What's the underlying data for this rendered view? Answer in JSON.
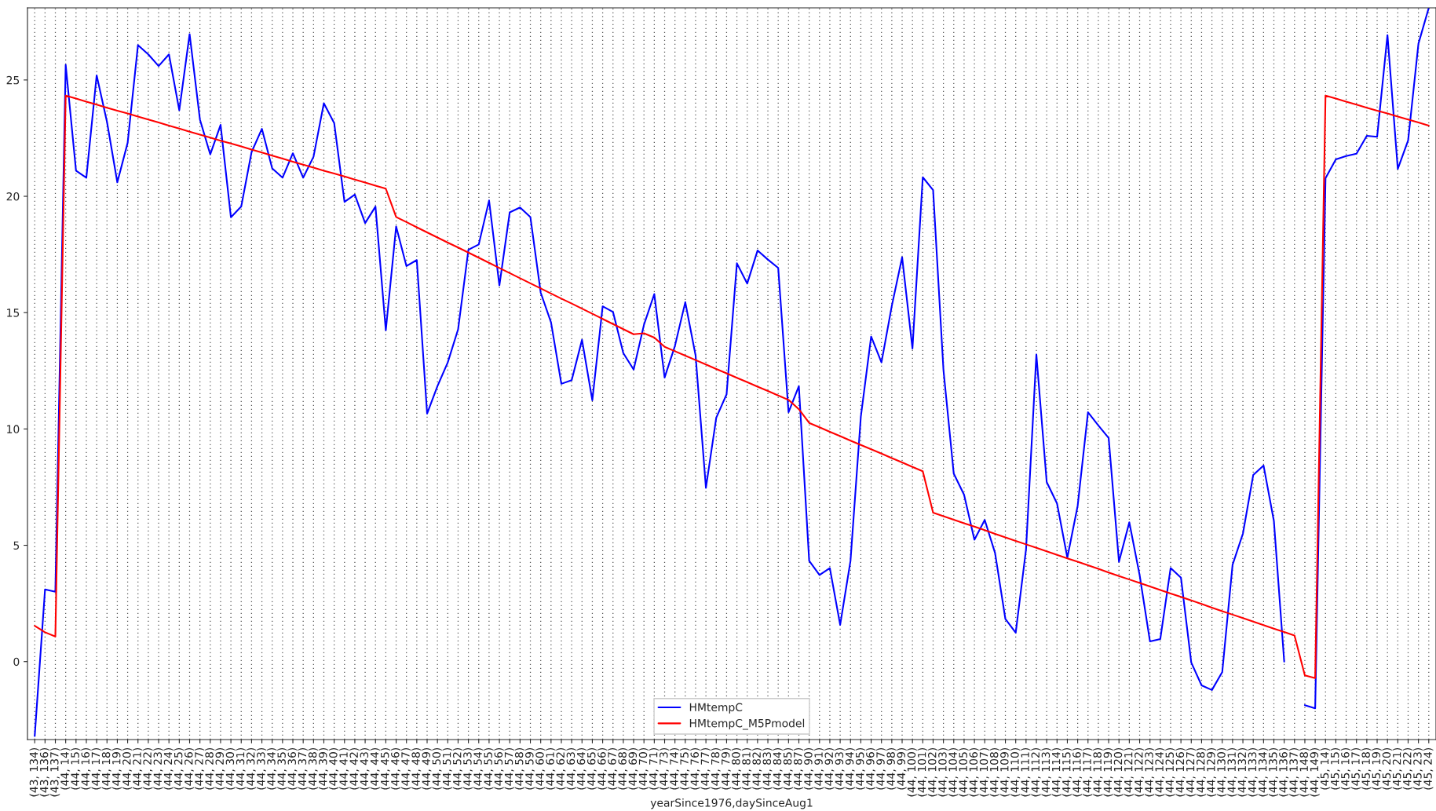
{
  "chart_data": {
    "type": "line",
    "xlabel": "yearSince1976,daySinceAug1",
    "categories": [
      "(43, 134)",
      "(43, 136)",
      "(43, 137)",
      "(44, 14)",
      "(44, 15)",
      "(44, 16)",
      "(44, 17)",
      "(44, 18)",
      "(44, 19)",
      "(44, 20)",
      "(44, 21)",
      "(44, 22)",
      "(44, 23)",
      "(44, 24)",
      "(44, 25)",
      "(44, 26)",
      "(44, 27)",
      "(44, 28)",
      "(44, 29)",
      "(44, 30)",
      "(44, 31)",
      "(44, 32)",
      "(44, 33)",
      "(44, 34)",
      "(44, 35)",
      "(44, 36)",
      "(44, 37)",
      "(44, 38)",
      "(44, 39)",
      "(44, 40)",
      "(44, 41)",
      "(44, 42)",
      "(44, 43)",
      "(44, 44)",
      "(44, 45)",
      "(44, 46)",
      "(44, 47)",
      "(44, 48)",
      "(44, 49)",
      "(44, 50)",
      "(44, 51)",
      "(44, 52)",
      "(44, 53)",
      "(44, 54)",
      "(44, 55)",
      "(44, 56)",
      "(44, 57)",
      "(44, 58)",
      "(44, 59)",
      "(44, 60)",
      "(44, 61)",
      "(44, 62)",
      "(44, 63)",
      "(44, 64)",
      "(44, 65)",
      "(44, 66)",
      "(44, 67)",
      "(44, 68)",
      "(44, 69)",
      "(44, 70)",
      "(44, 71)",
      "(44, 73)",
      "(44, 74)",
      "(44, 75)",
      "(44, 76)",
      "(44, 77)",
      "(44, 78)",
      "(44, 79)",
      "(44, 80)",
      "(44, 81)",
      "(44, 82)",
      "(44, 83)",
      "(44, 84)",
      "(44, 85)",
      "(44, 87)",
      "(44, 90)",
      "(44, 91)",
      "(44, 92)",
      "(44, 93)",
      "(44, 94)",
      "(44, 95)",
      "(44, 96)",
      "(44, 97)",
      "(44, 98)",
      "(44, 99)",
      "(44, 100)",
      "(44, 101)",
      "(44, 102)",
      "(44, 103)",
      "(44, 104)",
      "(44, 105)",
      "(44, 106)",
      "(44, 107)",
      "(44, 108)",
      "(44, 109)",
      "(44, 110)",
      "(44, 111)",
      "(44, 112)",
      "(44, 113)",
      "(44, 114)",
      "(44, 115)",
      "(44, 116)",
      "(44, 117)",
      "(44, 118)",
      "(44, 119)",
      "(44, 120)",
      "(44, 121)",
      "(44, 122)",
      "(44, 123)",
      "(44, 124)",
      "(44, 125)",
      "(44, 126)",
      "(44, 127)",
      "(44, 128)",
      "(44, 129)",
      "(44, 130)",
      "(44, 131)",
      "(44, 132)",
      "(44, 133)",
      "(44, 134)",
      "(44, 135)",
      "(44, 136)",
      "(44, 137)",
      "(44, 148)",
      "(44, 149)",
      "(45, 14)",
      "(45, 15)",
      "(45, 16)",
      "(45, 17)",
      "(45, 18)",
      "(45, 19)",
      "(45, 20)",
      "(45, 21)",
      "(45, 22)",
      "(45, 23)",
      "(45, 24)"
    ],
    "series": [
      {
        "name": "HMtempC",
        "color": "#0000ff",
        "values": [
          -3.2,
          3.1,
          3.0,
          25.65,
          21.1,
          20.8,
          25.2,
          23.2,
          20.6,
          22.3,
          26.5,
          26.1,
          25.6,
          26.1,
          23.7,
          26.97,
          23.3,
          21.8,
          23.07,
          19.1,
          19.56,
          21.9,
          22.9,
          21.2,
          20.8,
          21.85,
          20.8,
          21.7,
          24.0,
          23.15,
          19.76,
          20.07,
          18.85,
          19.56,
          14.24,
          18.7,
          17.0,
          17.26,
          10.66,
          11.84,
          12.86,
          14.28,
          17.7,
          17.93,
          19.82,
          16.17,
          19.31,
          19.52,
          19.11,
          15.86,
          14.58,
          11.94,
          12.1,
          13.83,
          11.23,
          15.27,
          15.03,
          13.26,
          12.55,
          14.48,
          15.8,
          12.21,
          13.57,
          15.45,
          13.16,
          7.47,
          10.48,
          11.49,
          17.12,
          16.25,
          17.67,
          17.28,
          16.92,
          10.72,
          11.84,
          4.33,
          3.72,
          4.02,
          1.58,
          4.33,
          10.52,
          13.97,
          12.86,
          15.29,
          17.38,
          13.46,
          20.82,
          20.27,
          12.55,
          8.08,
          7.17,
          5.24,
          6.09,
          4.67,
          1.83,
          1.24,
          4.83,
          13.2,
          7.72,
          6.8,
          4.47,
          6.7,
          10.72,
          10.15,
          9.61,
          4.29,
          5.99,
          3.72,
          0.87,
          0.97,
          4.02,
          3.61,
          -0.04,
          -1.02,
          -1.22,
          -0.45,
          4.16,
          5.5,
          8.02,
          8.43,
          6.05,
          0.0,
          null,
          -1.87,
          -2.01,
          20.78,
          21.59,
          21.73,
          21.83,
          22.6,
          22.56,
          26.93,
          21.18,
          22.4,
          26.56,
          28.1
        ]
      },
      {
        "name": "HMtempC_M5Pmodel",
        "color": "#ff0000",
        "values": [
          1.54,
          1.26,
          1.08,
          24.33,
          24.2,
          24.07,
          23.94,
          23.81,
          23.68,
          23.56,
          23.43,
          23.3,
          23.17,
          23.04,
          22.91,
          22.78,
          22.65,
          22.52,
          22.39,
          22.27,
          22.14,
          22.01,
          21.88,
          21.75,
          21.62,
          21.49,
          21.36,
          21.23,
          21.1,
          20.98,
          20.85,
          20.72,
          20.59,
          20.46,
          20.33,
          19.11,
          18.89,
          18.67,
          18.45,
          18.23,
          18.01,
          17.8,
          17.58,
          17.36,
          17.14,
          16.92,
          16.7,
          16.48,
          16.26,
          16.04,
          15.82,
          15.6,
          15.39,
          15.17,
          14.95,
          14.73,
          14.51,
          14.29,
          14.07,
          14.11,
          13.93,
          13.53,
          13.34,
          13.15,
          12.96,
          12.77,
          12.58,
          12.39,
          12.2,
          12.01,
          11.82,
          11.63,
          11.44,
          11.25,
          10.85,
          10.26,
          10.07,
          9.88,
          9.69,
          9.5,
          9.31,
          9.13,
          8.94,
          8.75,
          8.56,
          8.37,
          8.18,
          6.4,
          6.25,
          6.1,
          5.95,
          5.8,
          5.65,
          5.49,
          5.34,
          5.19,
          5.04,
          4.89,
          4.74,
          4.59,
          4.44,
          4.29,
          4.14,
          3.99,
          3.83,
          3.68,
          3.53,
          3.38,
          3.23,
          3.08,
          2.93,
          2.78,
          2.63,
          2.48,
          2.32,
          2.17,
          2.02,
          1.87,
          1.72,
          1.57,
          1.42,
          1.27,
          1.12,
          -0.59,
          -0.71,
          24.33,
          24.2,
          24.07,
          23.94,
          23.81,
          23.68,
          23.56,
          23.43,
          23.3,
          23.17,
          23.04
        ]
      }
    ],
    "ylim": [
      -3.35,
      28.1
    ],
    "yticks": [
      0,
      5,
      10,
      15,
      20,
      25
    ],
    "grid": "x",
    "legend": "bottom",
    "marker": "none",
    "line_style": "solid"
  }
}
